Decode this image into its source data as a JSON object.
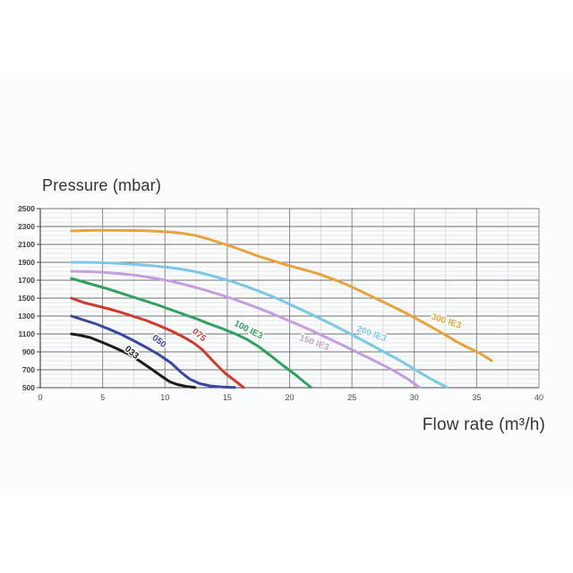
{
  "page": {
    "background": "#ffffff",
    "card_tint": "#fbfcfe"
  },
  "chart_data": {
    "type": "line",
    "title": "Pressure (mbar)",
    "xlabel": "Flow rate (m³/h)",
    "ylabel": "Pressure (mbar)",
    "legend_position": "inline-curve-labels",
    "grid": {
      "major_h_color": "#6f6f6f",
      "major_v_color": "#8d8d8d",
      "minor_h_color": "#e7e7e7",
      "minor_v_color": "#dedede",
      "axis_color": "#4a4a4a"
    },
    "x_axis": {
      "min": 0,
      "max": 40,
      "ticks": [
        0,
        5,
        10,
        15,
        20,
        25,
        30,
        35,
        40
      ],
      "minor_step": 2.5
    },
    "y_axis": {
      "min": 500,
      "max": 2500,
      "ticks": [
        500,
        700,
        900,
        1100,
        1300,
        1500,
        1700,
        1900,
        2100,
        2300,
        2500
      ],
      "minor_step": 50
    },
    "series": [
      {
        "name": "033",
        "color": "#1c1c1c",
        "label": {
          "text": "033",
          "x": 7.2,
          "y": 870,
          "angle": 40
        },
        "points": [
          [
            2.5,
            1100
          ],
          [
            3,
            1090
          ],
          [
            4,
            1060
          ],
          [
            5,
            1005
          ],
          [
            6,
            945
          ],
          [
            7,
            880
          ],
          [
            8,
            795
          ],
          [
            9,
            700
          ],
          [
            9.7,
            630
          ],
          [
            10.4,
            565
          ],
          [
            11,
            535
          ],
          [
            11.8,
            512
          ],
          [
            12.4,
            502
          ]
        ]
      },
      {
        "name": "050",
        "color": "#3a46a2",
        "label": {
          "text": "050",
          "x": 9.4,
          "y": 995,
          "angle": 38
        },
        "points": [
          [
            2.5,
            1300
          ],
          [
            3.5,
            1255
          ],
          [
            4.5,
            1210
          ],
          [
            5.5,
            1155
          ],
          [
            6.5,
            1095
          ],
          [
            7.5,
            1025
          ],
          [
            8.5,
            950
          ],
          [
            9.5,
            870
          ],
          [
            10.5,
            775
          ],
          [
            11.3,
            670
          ],
          [
            12,
            595
          ],
          [
            12.8,
            545
          ],
          [
            13.6,
            520
          ],
          [
            14.6,
            508
          ],
          [
            15.6,
            502
          ]
        ]
      },
      {
        "name": "075",
        "color": "#cf3a2e",
        "label": {
          "text": "075",
          "x": 12.6,
          "y": 1065,
          "angle": 40
        },
        "points": [
          [
            2.5,
            1500
          ],
          [
            3.5,
            1450
          ],
          [
            4.5,
            1415
          ],
          [
            5.5,
            1380
          ],
          [
            6.5,
            1340
          ],
          [
            7.5,
            1295
          ],
          [
            8.5,
            1250
          ],
          [
            9.5,
            1195
          ],
          [
            10.5,
            1135
          ],
          [
            11.5,
            1065
          ],
          [
            12.3,
            1000
          ],
          [
            13,
            925
          ],
          [
            13.9,
            790
          ],
          [
            14.8,
            665
          ],
          [
            15.6,
            580
          ],
          [
            16.3,
            502
          ]
        ]
      },
      {
        "name": "100 IE3",
        "color": "#31a05f",
        "label": {
          "text": "100 IE3",
          "x": 16.6,
          "y": 1120,
          "angle": 27
        },
        "points": [
          [
            2.5,
            1720
          ],
          [
            3.5,
            1680
          ],
          [
            4.5,
            1640
          ],
          [
            5.5,
            1600
          ],
          [
            6.5,
            1555
          ],
          [
            7.5,
            1510
          ],
          [
            8.5,
            1465
          ],
          [
            9.5,
            1420
          ],
          [
            10.5,
            1370
          ],
          [
            11.5,
            1320
          ],
          [
            12.5,
            1270
          ],
          [
            13.5,
            1215
          ],
          [
            14.5,
            1165
          ],
          [
            15.5,
            1110
          ],
          [
            16.5,
            1045
          ],
          [
            17.5,
            960
          ],
          [
            18.5,
            855
          ],
          [
            19.5,
            745
          ],
          [
            20.5,
            640
          ],
          [
            21.2,
            560
          ],
          [
            21.7,
            505
          ]
        ]
      },
      {
        "name": "150 IE3",
        "color": "#c49fdb",
        "label": {
          "text": "150 IE3",
          "x": 21.9,
          "y": 975,
          "angle": 20
        },
        "points": [
          [
            2.5,
            1800
          ],
          [
            3.5,
            1798
          ],
          [
            4.5,
            1792
          ],
          [
            5.5,
            1783
          ],
          [
            6.5,
            1772
          ],
          [
            7.5,
            1758
          ],
          [
            8.5,
            1738
          ],
          [
            9.5,
            1715
          ],
          [
            10.5,
            1688
          ],
          [
            11.5,
            1655
          ],
          [
            12.5,
            1618
          ],
          [
            13.5,
            1578
          ],
          [
            14.5,
            1535
          ],
          [
            15.5,
            1490
          ],
          [
            16.5,
            1440
          ],
          [
            17.5,
            1388
          ],
          [
            18.5,
            1333
          ],
          [
            19.5,
            1275
          ],
          [
            20.5,
            1215
          ],
          [
            21.5,
            1155
          ],
          [
            22.5,
            1090
          ],
          [
            23.5,
            1025
          ],
          [
            24.5,
            958
          ],
          [
            25.5,
            890
          ],
          [
            26.5,
            822
          ],
          [
            27.5,
            752
          ],
          [
            28.5,
            678
          ],
          [
            29.5,
            595
          ],
          [
            30.4,
            505
          ]
        ]
      },
      {
        "name": "200 IE3",
        "color": "#7cc8e4",
        "label": {
          "text": "200 IE3",
          "x": 26.5,
          "y": 1075,
          "angle": 20
        },
        "points": [
          [
            2.5,
            1900
          ],
          [
            3.5,
            1900
          ],
          [
            4.5,
            1898
          ],
          [
            5.5,
            1893
          ],
          [
            6.5,
            1886
          ],
          [
            7.5,
            1877
          ],
          [
            8.5,
            1867
          ],
          [
            9.5,
            1855
          ],
          [
            10.5,
            1840
          ],
          [
            11.5,
            1820
          ],
          [
            12.5,
            1793
          ],
          [
            13.5,
            1760
          ],
          [
            14.5,
            1722
          ],
          [
            15.5,
            1680
          ],
          [
            16.5,
            1632
          ],
          [
            17.5,
            1580
          ],
          [
            18.5,
            1525
          ],
          [
            19.5,
            1465
          ],
          [
            20.5,
            1400
          ],
          [
            21.5,
            1335
          ],
          [
            22.5,
            1268
          ],
          [
            23.5,
            1200
          ],
          [
            24.5,
            1128
          ],
          [
            25.5,
            1055
          ],
          [
            26.5,
            980
          ],
          [
            27.5,
            905
          ],
          [
            28.5,
            830
          ],
          [
            29.5,
            750
          ],
          [
            30.5,
            665
          ],
          [
            31.5,
            585
          ],
          [
            32.6,
            505
          ]
        ]
      },
      {
        "name": "300 IE3",
        "color": "#e7a33c",
        "label": {
          "text": "300 IE3",
          "x": 32.5,
          "y": 1215,
          "angle": 18
        },
        "points": [
          [
            2.5,
            2250
          ],
          [
            3.5,
            2255
          ],
          [
            4.5,
            2258
          ],
          [
            5.5,
            2258
          ],
          [
            6.5,
            2257
          ],
          [
            7.5,
            2255
          ],
          [
            8.5,
            2252
          ],
          [
            9.5,
            2246
          ],
          [
            10.5,
            2238
          ],
          [
            11.5,
            2222
          ],
          [
            12.5,
            2198
          ],
          [
            13.5,
            2160
          ],
          [
            14.5,
            2115
          ],
          [
            15.5,
            2070
          ],
          [
            16.5,
            2020
          ],
          [
            17.5,
            1968
          ],
          [
            18.5,
            1925
          ],
          [
            19.5,
            1882
          ],
          [
            20.5,
            1842
          ],
          [
            21.5,
            1805
          ],
          [
            22.5,
            1762
          ],
          [
            23.5,
            1712
          ],
          [
            24.5,
            1655
          ],
          [
            25.5,
            1592
          ],
          [
            26.5,
            1525
          ],
          [
            27.5,
            1458
          ],
          [
            28.5,
            1390
          ],
          [
            29.5,
            1320
          ],
          [
            30.5,
            1245
          ],
          [
            31.5,
            1168
          ],
          [
            32.5,
            1088
          ],
          [
            33.5,
            1005
          ],
          [
            34.5,
            935
          ],
          [
            35.3,
            880
          ],
          [
            36,
            820
          ],
          [
            36.2,
            800
          ]
        ]
      }
    ]
  }
}
